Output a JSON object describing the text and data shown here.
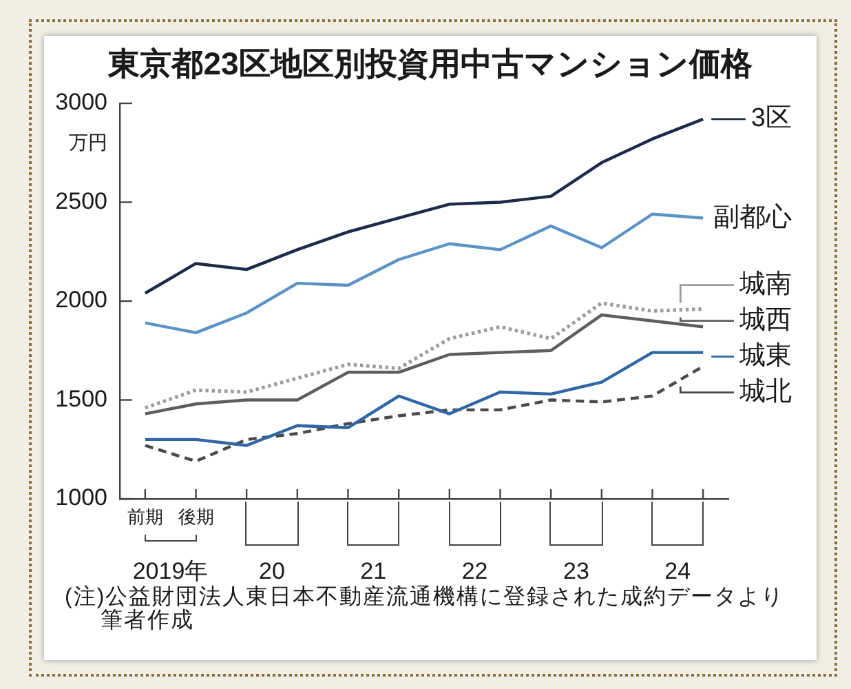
{
  "chart_data": {
    "type": "line",
    "title": "東京都23区地区別投資用中古マンション価格",
    "ylabel": "万円",
    "categories": [
      "前期",
      "後期",
      null,
      null,
      null,
      null,
      null,
      null,
      null,
      null,
      null,
      null
    ],
    "series": [
      {
        "name": "3区",
        "color": "#1e2a4a",
        "line_style": "solid",
        "values": [
          2040,
          2190,
          2160,
          2260,
          2350,
          2420,
          2490,
          2500,
          2530,
          2700,
          2820,
          2920
        ]
      },
      {
        "name": "副都心",
        "color": "#5b93c6",
        "line_style": "solid",
        "values": [
          1890,
          1840,
          1940,
          2090,
          2080,
          2210,
          2290,
          2260,
          2380,
          2270,
          2440,
          2420
        ]
      },
      {
        "name": "城南",
        "color": "#9c9c9c",
        "line_style": "dotted",
        "values": [
          1460,
          1550,
          1540,
          1610,
          1680,
          1660,
          1810,
          1870,
          1810,
          1990,
          1950,
          1960
        ]
      },
      {
        "name": "城西",
        "color": "#5e5e5e",
        "line_style": "solid",
        "values": [
          1430,
          1480,
          1500,
          1500,
          1640,
          1640,
          1730,
          1740,
          1750,
          1930,
          1900,
          1870
        ]
      },
      {
        "name": "城東",
        "color": "#2f66a6",
        "line_style": "solid",
        "values": [
          1300,
          1300,
          1270,
          1370,
          1360,
          1520,
          1430,
          1540,
          1530,
          1590,
          1740,
          1740
        ]
      },
      {
        "name": "城北",
        "color": "#4a4a4a",
        "line_style": "dashed",
        "values": [
          1270,
          1190,
          1300,
          1330,
          1380,
          1420,
          1450,
          1450,
          1500,
          1490,
          1520,
          1670
        ]
      }
    ],
    "ylim": [
      1000,
      3000
    ],
    "yticks": [
      1000,
      1500,
      2000,
      2500,
      3000
    ],
    "legend": "right",
    "annotations": [
      "2019年",
      "20",
      "21",
      "22",
      "23",
      "24",
      "(注)公益財団法人東日本不動産流通機構に登録された成約データより筆者作成"
    ]
  }
}
